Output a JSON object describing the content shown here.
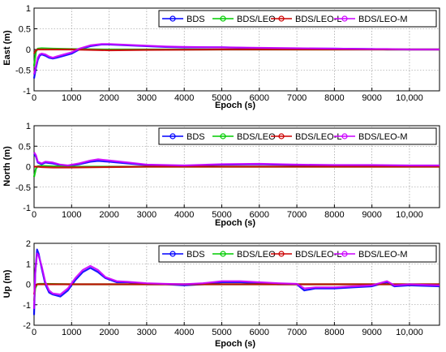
{
  "chart_data": [
    {
      "type": "line",
      "title": "",
      "xlabel": "Epoch (s)",
      "ylabel": "East (m)",
      "xlim": [
        0,
        10800
      ],
      "ylim": [
        -1,
        1
      ],
      "x_ticks": [
        "0",
        "1000",
        "2000",
        "3000",
        "4000",
        "5000",
        "6000",
        "7000",
        "8000",
        "9000",
        "10,000"
      ],
      "y_ticks": [
        "-1",
        "-0.5",
        "0",
        "0.5",
        "1"
      ],
      "grid": true,
      "legend_position": "top-right",
      "series": [
        {
          "name": "BDS",
          "color": "#0000ff",
          "x": [
            0,
            50,
            100,
            150,
            200,
            300,
            400,
            500,
            600,
            800,
            1000,
            1200,
            1500,
            1800,
            2000,
            2500,
            3000,
            3500,
            4000,
            5000,
            6000,
            7000,
            8000,
            9000,
            9400,
            10000,
            10800
          ],
          "y": [
            -0.7,
            -0.45,
            -0.25,
            -0.15,
            -0.12,
            -0.15,
            -0.2,
            -0.22,
            -0.2,
            -0.15,
            -0.1,
            0.0,
            0.08,
            0.12,
            0.12,
            0.1,
            0.08,
            0.06,
            0.05,
            0.05,
            0.03,
            0.02,
            0.02,
            0.01,
            0.0,
            0.0,
            0.0
          ]
        },
        {
          "name": "BDS/LEO",
          "color": "#00cc00",
          "x": [
            0,
            50,
            100,
            200,
            500,
            1000,
            2000,
            3000,
            5000,
            7000,
            9000,
            10800
          ],
          "y": [
            -0.4,
            -0.05,
            0.02,
            0.03,
            0.02,
            0.01,
            0.0,
            0.0,
            0.0,
            0.0,
            0.0,
            0.0
          ]
        },
        {
          "name": "BDS/LEO-L",
          "color": "#cc0000",
          "x": [
            0,
            50,
            100,
            200,
            500,
            1000,
            2000,
            3000,
            5000,
            7000,
            9000,
            10800
          ],
          "y": [
            -0.1,
            -0.02,
            0.0,
            0.0,
            0.0,
            0.0,
            -0.02,
            -0.01,
            0.0,
            0.0,
            0.0,
            0.0
          ]
        },
        {
          "name": "BDS/LEO-M",
          "color": "#cc00ff",
          "x": [
            0,
            50,
            100,
            150,
            200,
            300,
            400,
            500,
            600,
            800,
            1000,
            1200,
            1500,
            1800,
            2000,
            2500,
            3000,
            3500,
            4000,
            5000,
            6000,
            7000,
            8000,
            9000,
            9400,
            10000,
            10800
          ],
          "y": [
            -0.6,
            -0.4,
            -0.2,
            -0.12,
            -0.1,
            -0.12,
            -0.17,
            -0.2,
            -0.17,
            -0.12,
            -0.07,
            0.02,
            0.1,
            0.13,
            0.13,
            0.11,
            0.09,
            0.07,
            0.06,
            0.05,
            0.04,
            0.03,
            0.02,
            0.01,
            0.01,
            0.0,
            0.0
          ]
        }
      ]
    },
    {
      "type": "line",
      "title": "",
      "xlabel": "Epoch (s)",
      "ylabel": "North (m)",
      "xlim": [
        0,
        10800
      ],
      "ylim": [
        -1,
        1
      ],
      "x_ticks": [
        "0",
        "1000",
        "2000",
        "3000",
        "4000",
        "5000",
        "6000",
        "7000",
        "8000",
        "9000",
        "10,000"
      ],
      "y_ticks": [
        "-1",
        "-0.5",
        "0",
        "0.5",
        "1"
      ],
      "grid": true,
      "legend_position": "top-right",
      "series": [
        {
          "name": "BDS",
          "color": "#0000ff",
          "x": [
            0,
            50,
            100,
            200,
            300,
            500,
            700,
            900,
            1200,
            1500,
            1700,
            2000,
            2500,
            3000,
            3500,
            4000,
            5000,
            6000,
            7000,
            8000,
            9000,
            10000,
            10800
          ],
          "y": [
            0.3,
            0.25,
            0.1,
            0.06,
            0.1,
            0.08,
            0.04,
            0.02,
            0.06,
            0.12,
            0.14,
            0.12,
            0.08,
            0.04,
            0.03,
            0.02,
            0.05,
            0.06,
            0.04,
            0.03,
            0.03,
            0.02,
            0.02
          ]
        },
        {
          "name": "BDS/LEO",
          "color": "#00cc00",
          "x": [
            0,
            50,
            100,
            200,
            500,
            1000,
            2000,
            3000,
            5000,
            7000,
            9000,
            10800
          ],
          "y": [
            -0.25,
            -0.05,
            0.01,
            0.02,
            0.01,
            0.0,
            0.0,
            0.0,
            0.0,
            0.0,
            0.0,
            0.0
          ]
        },
        {
          "name": "BDS/LEO-L",
          "color": "#cc0000",
          "x": [
            0,
            50,
            100,
            200,
            500,
            1000,
            2000,
            3000,
            5000,
            7000,
            9000,
            10800
          ],
          "y": [
            0.0,
            0.0,
            0.0,
            -0.01,
            -0.02,
            -0.02,
            -0.01,
            0.0,
            0.0,
            0.0,
            0.0,
            0.0
          ]
        },
        {
          "name": "BDS/LEO-M",
          "color": "#cc00ff",
          "x": [
            0,
            50,
            100,
            200,
            300,
            500,
            700,
            900,
            1200,
            1500,
            1700,
            2000,
            2500,
            3000,
            3500,
            4000,
            5000,
            6000,
            7000,
            8000,
            9000,
            10000,
            10800
          ],
          "y": [
            0.35,
            0.28,
            0.12,
            0.08,
            0.12,
            0.1,
            0.05,
            0.03,
            0.08,
            0.15,
            0.18,
            0.15,
            0.1,
            0.05,
            0.04,
            0.03,
            0.06,
            0.07,
            0.05,
            0.04,
            0.04,
            0.03,
            0.03
          ]
        }
      ]
    },
    {
      "type": "line",
      "title": "",
      "xlabel": "Epoch (s)",
      "ylabel": "Up (m)",
      "xlim": [
        0,
        10800
      ],
      "ylim": [
        -2,
        2
      ],
      "x_ticks": [
        "0",
        "1000",
        "2000",
        "3000",
        "4000",
        "5000",
        "6000",
        "7000",
        "8000",
        "9000",
        "10,000"
      ],
      "y_ticks": [
        "-2",
        "-1",
        "0",
        "1",
        "2"
      ],
      "grid": true,
      "legend_position": "top-right",
      "series": [
        {
          "name": "BDS",
          "color": "#0000ff",
          "x": [
            0,
            30,
            80,
            120,
            200,
            300,
            400,
            500,
            700,
            900,
            1100,
            1300,
            1500,
            1700,
            1900,
            2200,
            2500,
            3000,
            3500,
            4000,
            4500,
            5000,
            5500,
            6000,
            6500,
            7000,
            7200,
            7500,
            8000,
            8500,
            9000,
            9400,
            9600,
            10000,
            10800
          ],
          "y": [
            -1.5,
            0.5,
            1.7,
            1.5,
            0.8,
            0.0,
            -0.4,
            -0.5,
            -0.6,
            -0.3,
            0.2,
            0.6,
            0.8,
            0.6,
            0.3,
            0.1,
            0.1,
            0.0,
            0.0,
            -0.05,
            0.0,
            0.1,
            0.1,
            0.05,
            0.0,
            0.0,
            -0.3,
            -0.2,
            -0.2,
            -0.15,
            -0.1,
            0.1,
            -0.1,
            -0.05,
            -0.1
          ]
        },
        {
          "name": "BDS/LEO",
          "color": "#00cc00",
          "x": [
            0,
            30,
            80,
            150,
            300,
            1000,
            2000,
            3000,
            5000,
            7000,
            9000,
            10800
          ],
          "y": [
            -0.8,
            -0.2,
            0.0,
            0.02,
            0.02,
            0.0,
            0.0,
            0.0,
            0.0,
            0.0,
            0.0,
            0.0
          ]
        },
        {
          "name": "BDS/LEO-L",
          "color": "#cc0000",
          "x": [
            0,
            30,
            80,
            150,
            300,
            1000,
            2000,
            3000,
            5000,
            7000,
            9000,
            10800
          ],
          "y": [
            -0.5,
            -0.1,
            0.0,
            0.0,
            0.0,
            0.0,
            0.0,
            0.0,
            0.0,
            0.0,
            0.0,
            0.0
          ]
        },
        {
          "name": "BDS/LEO-M",
          "color": "#cc00ff",
          "x": [
            0,
            30,
            80,
            120,
            200,
            300,
            400,
            500,
            700,
            900,
            1100,
            1300,
            1500,
            1700,
            1900,
            2200,
            2500,
            3000,
            3500,
            4000,
            4500,
            5000,
            5500,
            6000,
            6500,
            7000,
            7200,
            7500,
            8000,
            8500,
            9000,
            9400,
            9600,
            10000,
            10800
          ],
          "y": [
            -1.2,
            0.6,
            1.5,
            1.4,
            0.9,
            0.1,
            -0.3,
            -0.45,
            -0.5,
            -0.2,
            0.3,
            0.7,
            0.9,
            0.7,
            0.35,
            0.15,
            0.12,
            0.05,
            0.02,
            0.0,
            0.05,
            0.15,
            0.15,
            0.1,
            0.05,
            0.02,
            -0.2,
            -0.15,
            -0.15,
            -0.1,
            -0.05,
            0.15,
            -0.05,
            0.0,
            -0.05
          ]
        }
      ]
    }
  ]
}
